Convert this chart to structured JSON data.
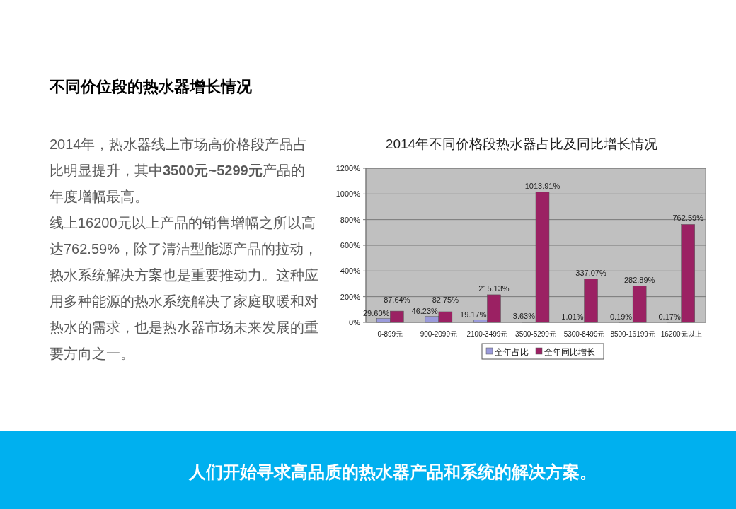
{
  "chart_data": {
    "type": "bar",
    "title": "2014年不同价格段热水器占比及同比增长情况",
    "categories": [
      "0-899元",
      "900-2099元",
      "2100-3499元",
      "3500-5299元",
      "5300-8499元",
      "8500-16199元",
      "16200元以上"
    ],
    "series": [
      {
        "name": "全年占比",
        "color": "#9b9bdb",
        "values": [
          29.6,
          46.23,
          19.17,
          3.63,
          1.01,
          0.19,
          0.17
        ],
        "value_labels": [
          "29.60%",
          "46.23%",
          "19.17%",
          "3.63%",
          "1.01%",
          "0.19%",
          "0.17%"
        ]
      },
      {
        "name": "全年同比增长",
        "color": "#9b2163",
        "values": [
          87.64,
          82.75,
          215.13,
          1013.91,
          337.07,
          282.89,
          762.59
        ],
        "value_labels": [
          "87.64%",
          "82.75%",
          "215.13%",
          "1013.91%",
          "337.07%",
          "282.89%",
          "762.59%"
        ]
      }
    ],
    "ylim": [
      0,
      1200
    ],
    "yticks": [
      {
        "value": 0,
        "label": "0%"
      },
      {
        "value": 200,
        "label": "200%"
      },
      {
        "value": 400,
        "label": "400%"
      },
      {
        "value": 600,
        "label": "600%"
      },
      {
        "value": 800,
        "label": "800%"
      },
      {
        "value": 1000,
        "label": "1000%"
      },
      {
        "value": 1200,
        "label": "1200%"
      }
    ],
    "grid": "y",
    "legend": "bottom",
    "annotations": [
      "不同价位段的热水器增长情况",
      "2014年，热水器线上市场高价格段产品占比明显提升，其中**3500元~5299元**产品的年度增幅最高。",
      "线上16200元以上产品的销售增幅之所以高达762.59%，除了清洁型能源产品的拉动，热水系统解决方案也是重要推动力。这种应用多种能源的热水系统解决了家庭取暖和对热水的需求，也是热水器市场未来发展的重要方向之一。",
      "人们开始寻求高品质的热水器产品和系统的解决方案。"
    ]
  }
}
